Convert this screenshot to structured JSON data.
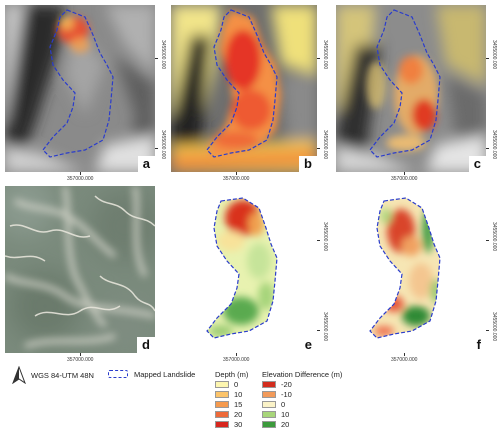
{
  "panels": [
    {
      "id": "a",
      "label": "a"
    },
    {
      "id": "b",
      "label": "b"
    },
    {
      "id": "c",
      "label": "c"
    },
    {
      "id": "d",
      "label": "d"
    },
    {
      "id": "e",
      "label": "e"
    },
    {
      "id": "f",
      "label": "f"
    }
  ],
  "ticks": {
    "x_label": "357000.000",
    "y_label": "3455000.000"
  },
  "legend": {
    "crs": "WGS 84-UTM 48N",
    "mapped_landslide": "Mapped Landslide",
    "depth_title": "Depth (m)",
    "depth_items": [
      {
        "label": "0",
        "color": "#fdf6b0"
      },
      {
        "label": "10",
        "color": "#fcc46a"
      },
      {
        "label": "15",
        "color": "#f59a4e"
      },
      {
        "label": "20",
        "color": "#ee6a3a"
      },
      {
        "label": "30",
        "color": "#d7261e"
      }
    ],
    "elev_title": "Elevation Difference (m)",
    "elev_items": [
      {
        "label": "-20",
        "color": "#d22d1e"
      },
      {
        "label": "-10",
        "color": "#f29a5a"
      },
      {
        "label": "0",
        "color": "#fbf3c8"
      },
      {
        "label": "10",
        "color": "#a8d67a"
      },
      {
        "label": "20",
        "color": "#3c9a3c"
      }
    ]
  },
  "colors": {
    "landslide_outline": "#2a3ccc"
  }
}
